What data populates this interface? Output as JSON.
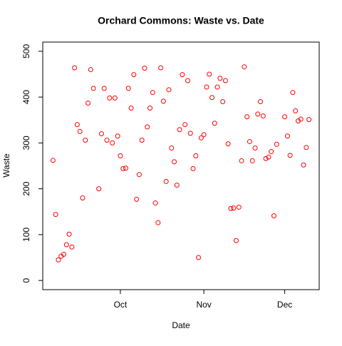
{
  "chart_data": {
    "type": "scatter",
    "title": "Orchard Commons: Waste vs. Date",
    "x_label": "Date",
    "y_label": "Waste",
    "series": [
      {
        "name": "Waste",
        "color": "#ff0000",
        "x": [
          249,
          250,
          251,
          252,
          253,
          254,
          255,
          256,
          257,
          258,
          259,
          260,
          261,
          262,
          263,
          264,
          266,
          267,
          268,
          269,
          270,
          271,
          272,
          273,
          274,
          275,
          276,
          277,
          278,
          279,
          280,
          281,
          282,
          283,
          284,
          285,
          286,
          287,
          288,
          289,
          290,
          291,
          292,
          293,
          294,
          295,
          296,
          297,
          298,
          299,
          300,
          301,
          302,
          303,
          304,
          305,
          306,
          307,
          308,
          309,
          310,
          311,
          312,
          313,
          314,
          315,
          316,
          317,
          318,
          319,
          320,
          321,
          322,
          323,
          324,
          325,
          326,
          327,
          328,
          329,
          330,
          331,
          332,
          335,
          336,
          337,
          338,
          339,
          340,
          341,
          342,
          343,
          344
        ],
        "values": [
          262,
          144,
          45,
          53,
          57,
          78,
          101,
          73,
          464,
          340,
          325,
          180,
          306,
          387,
          460,
          419,
          200,
          320,
          419,
          306,
          398,
          300,
          398,
          315,
          272,
          244,
          245,
          419,
          376,
          449,
          177,
          231,
          306,
          463,
          335,
          376,
          410,
          169,
          126,
          464,
          391,
          216,
          416,
          289,
          259,
          208,
          329,
          449,
          340,
          436,
          321,
          244,
          272,
          50,
          311,
          318,
          422,
          450,
          399,
          343,
          422,
          441,
          390,
          436,
          298,
          157,
          158,
          87,
          160,
          261,
          466,
          357,
          303,
          261,
          289,
          363,
          390,
          359,
          266,
          269,
          281,
          141,
          297,
          357,
          315,
          273,
          410,
          370,
          348,
          352,
          252,
          290,
          351
        ]
      }
    ],
    "xlim": [
      245.2,
      347.8
    ],
    "xticks": [
      {
        "value": 274,
        "label": "Oct"
      },
      {
        "value": 305,
        "label": "Nov"
      },
      {
        "value": 335,
        "label": "Dec"
      }
    ],
    "ylim": [
      -20,
      520
    ],
    "yticks": [
      0,
      100,
      200,
      300,
      400,
      500
    ]
  }
}
